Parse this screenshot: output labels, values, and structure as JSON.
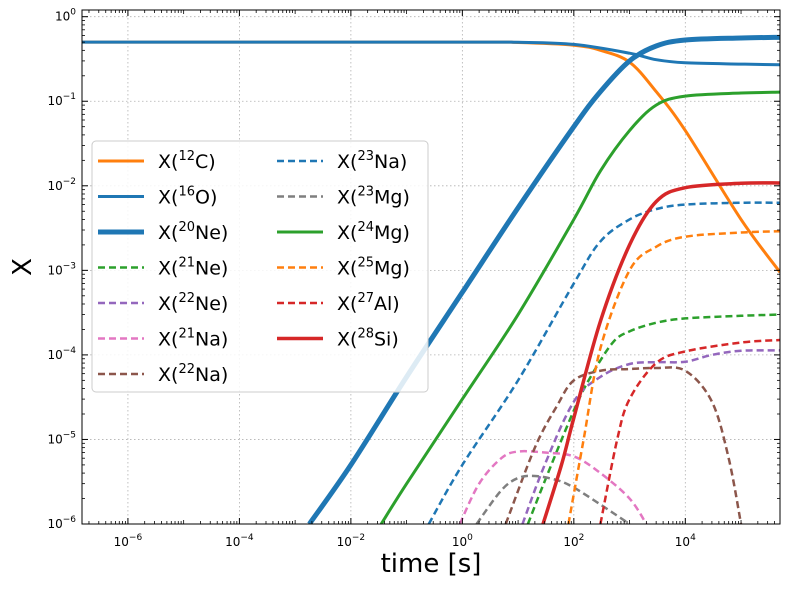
{
  "chart_data": {
    "type": "line",
    "title": "",
    "xlabel": "time [s]",
    "ylabel": "X",
    "xscale": "log",
    "yscale": "log",
    "xlim": [
      1.5e-07,
      500000.0
    ],
    "ylim": [
      1e-06,
      1.2
    ],
    "grid": true,
    "grid_style": "dotted",
    "legend_placement": "center-left",
    "legend_columns": 2,
    "x_ticks": [
      {
        "value": 1e-06,
        "base": "10",
        "exp": "−6"
      },
      {
        "value": 0.0001,
        "base": "10",
        "exp": "−4"
      },
      {
        "value": 0.01,
        "base": "10",
        "exp": "−2"
      },
      {
        "value": 1,
        "base": "10",
        "exp": "0"
      },
      {
        "value": 100,
        "base": "10",
        "exp": "2"
      },
      {
        "value": 10000,
        "base": "10",
        "exp": "4"
      }
    ],
    "y_ticks": [
      {
        "value": 1e-06,
        "base": "10",
        "exp": "−6"
      },
      {
        "value": 1e-05,
        "base": "10",
        "exp": "−5"
      },
      {
        "value": 0.0001,
        "base": "10",
        "exp": "−4"
      },
      {
        "value": 0.001,
        "base": "10",
        "exp": "−3"
      },
      {
        "value": 0.01,
        "base": "10",
        "exp": "−2"
      },
      {
        "value": 0.1,
        "base": "10",
        "exp": "−1"
      },
      {
        "value": 1,
        "base": "10",
        "exp": "0"
      }
    ],
    "series": [
      {
        "name_pre": "X(",
        "name_sup": "12",
        "name_post": "C)",
        "color": "#ff7f0e",
        "dash": "solid",
        "width": 3,
        "points": [
          [
            1.5e-07,
            0.5
          ],
          [
            1,
            0.5
          ],
          [
            10,
            0.495
          ],
          [
            100,
            0.46
          ],
          [
            300,
            0.4
          ],
          [
            1000,
            0.29
          ],
          [
            3000,
            0.13
          ],
          [
            10000,
            0.045
          ],
          [
            100000,
            0.004
          ],
          [
            500000,
            0.00095
          ]
        ]
      },
      {
        "name_pre": "X(",
        "name_sup": "16",
        "name_post": "O)",
        "color": "#1f77b4",
        "dash": "solid",
        "width": 3,
        "points": [
          [
            1.5e-07,
            0.5
          ],
          [
            1,
            0.5
          ],
          [
            10,
            0.498
          ],
          [
            100,
            0.47
          ],
          [
            1000,
            0.37
          ],
          [
            3000,
            0.31
          ],
          [
            10000,
            0.285
          ],
          [
            100000,
            0.275
          ],
          [
            500000,
            0.27
          ]
        ]
      },
      {
        "name_pre": "X(",
        "name_sup": "20",
        "name_post": "Ne)",
        "color": "#1f77b4",
        "dash": "solid",
        "width": 5,
        "points": [
          [
            0.0018,
            1e-06
          ],
          [
            0.01,
            5e-06
          ],
          [
            0.1,
            5.5e-05
          ],
          [
            1,
            0.00055
          ],
          [
            10,
            0.0055
          ],
          [
            100,
            0.05
          ],
          [
            300,
            0.13
          ],
          [
            1000,
            0.3
          ],
          [
            3000,
            0.45
          ],
          [
            10000,
            0.53
          ],
          [
            100000,
            0.56
          ],
          [
            500000,
            0.57
          ]
        ]
      },
      {
        "name_pre": "X(",
        "name_sup": "21",
        "name_post": "Ne)",
        "color": "#2ca02c",
        "dash": "dashed",
        "width": 2.5,
        "points": [
          [
            15,
            1e-06
          ],
          [
            30,
            3.2e-06
          ],
          [
            100,
            2.2e-05
          ],
          [
            200,
            5.5e-05
          ],
          [
            500,
            0.00014
          ],
          [
            1000,
            0.00019
          ],
          [
            3000,
            0.00024
          ],
          [
            10000,
            0.00027
          ],
          [
            100000,
            0.00029
          ],
          [
            500000,
            0.0003
          ]
        ]
      },
      {
        "name_pre": "X(",
        "name_sup": "22",
        "name_post": "Ne)",
        "color": "#9467bd",
        "dash": "dashed",
        "width": 2.5,
        "points": [
          [
            12,
            1e-06
          ],
          [
            30,
            5e-06
          ],
          [
            100,
            2.8e-05
          ],
          [
            300,
            5.5e-05
          ],
          [
            1000,
            7.8e-05
          ],
          [
            3000,
            8.2e-05
          ],
          [
            10000,
            8.3e-05
          ],
          [
            30000,
            0.0001
          ],
          [
            100000,
            0.000112
          ],
          [
            500000,
            0.000113
          ]
        ]
      },
      {
        "name_pre": "X(",
        "name_sup": "21",
        "name_post": "Na)",
        "color": "#e377c2",
        "dash": "dashed",
        "width": 2.5,
        "points": [
          [
            0.9,
            1e-06
          ],
          [
            2,
            3e-06
          ],
          [
            5,
            6e-06
          ],
          [
            10,
            7.2e-06
          ],
          [
            30,
            7e-06
          ],
          [
            100,
            6.3e-06
          ],
          [
            300,
            4e-06
          ],
          [
            1000,
            2e-06
          ],
          [
            2000,
            1e-06
          ]
        ]
      },
      {
        "name_pre": "X(",
        "name_sup": "22",
        "name_post": "Na)",
        "color": "#8c564b",
        "dash": "dashed",
        "width": 2.5,
        "points": [
          [
            6,
            1e-06
          ],
          [
            20,
            8e-06
          ],
          [
            50,
            2.5e-05
          ],
          [
            100,
            5e-05
          ],
          [
            300,
            6.5e-05
          ],
          [
            1000,
            6.8e-05
          ],
          [
            3000,
            7e-05
          ],
          [
            10000,
            6.5e-05
          ],
          [
            30000,
            2.8e-05
          ],
          [
            60000,
            6e-06
          ],
          [
            100000,
            1e-06
          ]
        ]
      },
      {
        "name_pre": "X(",
        "name_sup": "23",
        "name_post": "Na)",
        "color": "#1f77b4",
        "dash": "dashed",
        "width": 2.5,
        "points": [
          [
            0.25,
            1e-06
          ],
          [
            1,
            5e-06
          ],
          [
            10,
            5e-05
          ],
          [
            100,
            0.0007
          ],
          [
            300,
            0.0022
          ],
          [
            1000,
            0.004
          ],
          [
            3000,
            0.0053
          ],
          [
            10000,
            0.006
          ],
          [
            100000,
            0.0063
          ],
          [
            500000,
            0.0063
          ]
        ]
      },
      {
        "name_pre": "X(",
        "name_sup": "23",
        "name_post": "Mg)",
        "color": "#7f7f7f",
        "dash": "dashed",
        "width": 2.5,
        "points": [
          [
            1.8,
            1e-06
          ],
          [
            5,
            2.5e-06
          ],
          [
            10,
            3.5e-06
          ],
          [
            20,
            3.7e-06
          ],
          [
            50,
            3.3e-06
          ],
          [
            100,
            2.7e-06
          ],
          [
            300,
            1.7e-06
          ],
          [
            1000,
            1e-06
          ]
        ]
      },
      {
        "name_pre": "X(",
        "name_sup": "24",
        "name_post": "Mg)",
        "color": "#2ca02c",
        "dash": "solid",
        "width": 3,
        "points": [
          [
            0.035,
            1e-06
          ],
          [
            0.1,
            3e-06
          ],
          [
            1,
            3e-05
          ],
          [
            10,
            0.0003
          ],
          [
            100,
            0.004
          ],
          [
            300,
            0.015
          ],
          [
            1000,
            0.045
          ],
          [
            3000,
            0.09
          ],
          [
            10000,
            0.115
          ],
          [
            100000,
            0.125
          ],
          [
            500000,
            0.128
          ]
        ]
      },
      {
        "name_pre": "X(",
        "name_sup": "25",
        "name_post": "Mg)",
        "color": "#ff7f0e",
        "dash": "dashed",
        "width": 2.5,
        "points": [
          [
            80,
            1e-06
          ],
          [
            150,
            1e-05
          ],
          [
            300,
            0.00012
          ],
          [
            1000,
            0.001
          ],
          [
            3000,
            0.0019
          ],
          [
            10000,
            0.0025
          ],
          [
            100000,
            0.0028
          ],
          [
            500000,
            0.0029
          ]
        ]
      },
      {
        "name_pre": "X(",
        "name_sup": "27",
        "name_post": "Al)",
        "color": "#d62728",
        "dash": "dashed",
        "width": 2.5,
        "points": [
          [
            300,
            1e-06
          ],
          [
            600,
            1e-05
          ],
          [
            1000,
            3e-05
          ],
          [
            3000,
            8e-05
          ],
          [
            10000,
            0.00011
          ],
          [
            100000,
            0.00014
          ],
          [
            500000,
            0.00015
          ]
        ]
      },
      {
        "name_pre": "X(",
        "name_sup": "28",
        "name_post": "Si)",
        "color": "#d62728",
        "dash": "solid",
        "width": 3.5,
        "points": [
          [
            28,
            1e-06
          ],
          [
            60,
            5e-06
          ],
          [
            100,
            1.8e-05
          ],
          [
            300,
            0.00025
          ],
          [
            1000,
            0.002
          ],
          [
            3000,
            0.0065
          ],
          [
            10000,
            0.0095
          ],
          [
            100000,
            0.0107
          ],
          [
            500000,
            0.0108
          ]
        ]
      }
    ]
  }
}
